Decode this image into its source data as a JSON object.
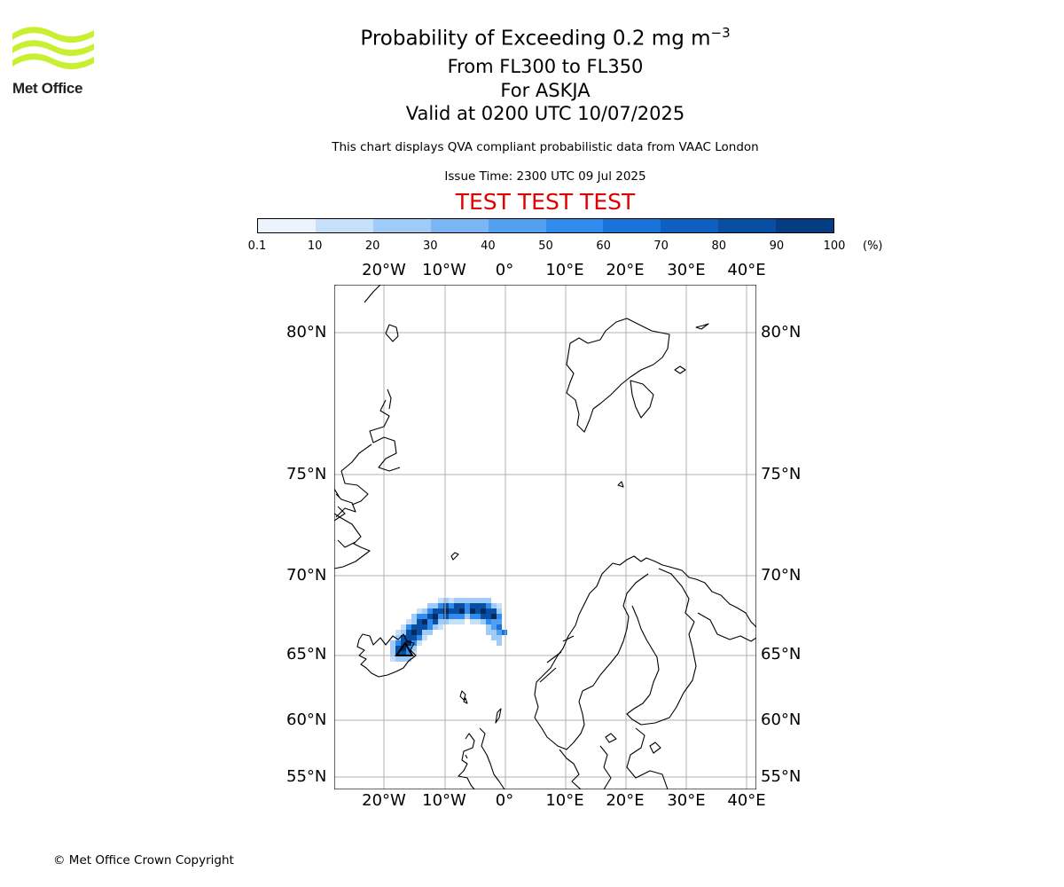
{
  "branding": {
    "logo_text": "Met Office",
    "logo_color": "#c8f031"
  },
  "header": {
    "title_main": "Probability of Exceeding 0.2 mg m",
    "title_exponent": "−3",
    "flight_levels": "From FL300 to FL350",
    "volcano": "For ASKJA",
    "valid_time": "Valid at 0200 UTC 10/07/2025",
    "description": "This chart displays QVA compliant probabilistic data from VAAC London",
    "issue_time": "Issue Time: 2300 UTC 09 Jul 2025",
    "test_banner": "TEST TEST TEST",
    "test_banner_color": "#e00000"
  },
  "colorbar": {
    "ticks": [
      "0.1",
      "10",
      "20",
      "30",
      "40",
      "50",
      "60",
      "70",
      "80",
      "90",
      "100"
    ],
    "unit": "(%)",
    "colors": [
      "#ebf4fd",
      "#c6e0fa",
      "#a0cbf7",
      "#7ab6f4",
      "#52a0f0",
      "#2f8bec",
      "#1a73d9",
      "#0e5fbf",
      "#084ea3",
      "#063c82",
      "#042a5e"
    ]
  },
  "map": {
    "lon_labels": [
      "20°W",
      "10°W",
      "0°",
      "10°E",
      "20°E",
      "30°E",
      "40°E"
    ],
    "lat_labels": [
      "80°N",
      "75°N",
      "70°N",
      "65°N",
      "60°N",
      "55°N"
    ],
    "grid": true,
    "volcano_marker": "triangle-icon"
  },
  "footer": {
    "copyright": "© Met Office Crown Copyright"
  }
}
